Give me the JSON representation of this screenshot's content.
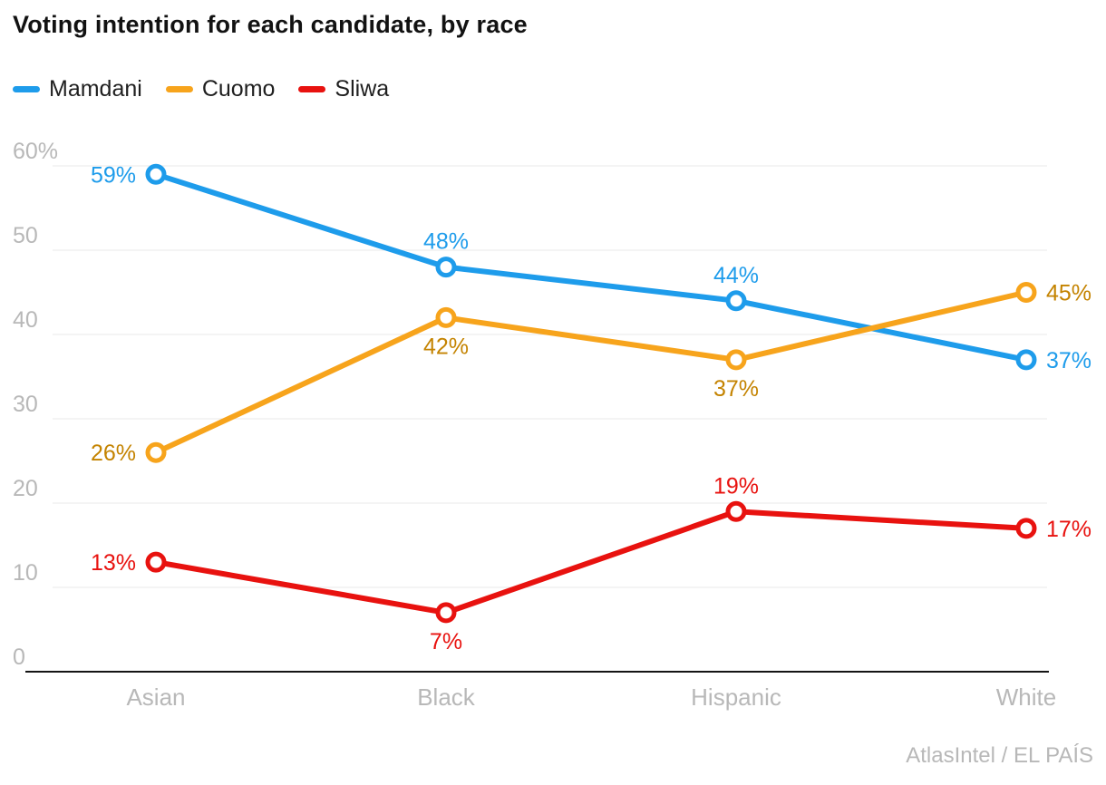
{
  "title": "Voting intention for each candidate, by race",
  "source": "AtlasIntel / EL PAÍS",
  "legend": [
    {
      "label": "Mamdani",
      "color": "#1E9CEB"
    },
    {
      "label": "Cuomo",
      "color": "#F7A41C"
    },
    {
      "label": "Sliwa",
      "color": "#E8120F"
    }
  ],
  "chart_data": {
    "type": "line",
    "title": "Voting intention for each candidate, by race",
    "categories": [
      "Asian",
      "Black",
      "Hispanic",
      "White"
    ],
    "series": [
      {
        "name": "Mamdani",
        "color": "#1E9CEB",
        "label_color": "#1E9CEB",
        "values": [
          59,
          48,
          44,
          37
        ],
        "label_placements": [
          "left",
          "above",
          "above",
          "right"
        ]
      },
      {
        "name": "Cuomo",
        "color": "#F7A41C",
        "label_color": "#C48300",
        "values": [
          26,
          42,
          37,
          45
        ],
        "label_placements": [
          "left",
          "below",
          "below",
          "right"
        ]
      },
      {
        "name": "Sliwa",
        "color": "#E8120F",
        "label_color": "#E8120F",
        "values": [
          13,
          7,
          19,
          17
        ],
        "label_placements": [
          "left",
          "below",
          "above",
          "right"
        ]
      }
    ],
    "xlabel": "",
    "ylabel": "",
    "y_ticks": [
      "60%",
      "50",
      "40",
      "30",
      "20",
      "10",
      "0"
    ],
    "y_tick_values": [
      60,
      50,
      40,
      30,
      20,
      10,
      0
    ],
    "ylim": [
      0,
      63
    ],
    "value_suffix": "%",
    "grid": true,
    "legend_position": "top-left",
    "styling": {
      "grid_color": "#E8E8E8",
      "axis_color": "#141414",
      "tick_label_color": "#B8B8B8",
      "title_color": "#121212",
      "source_color": "#B8B8B8"
    }
  }
}
